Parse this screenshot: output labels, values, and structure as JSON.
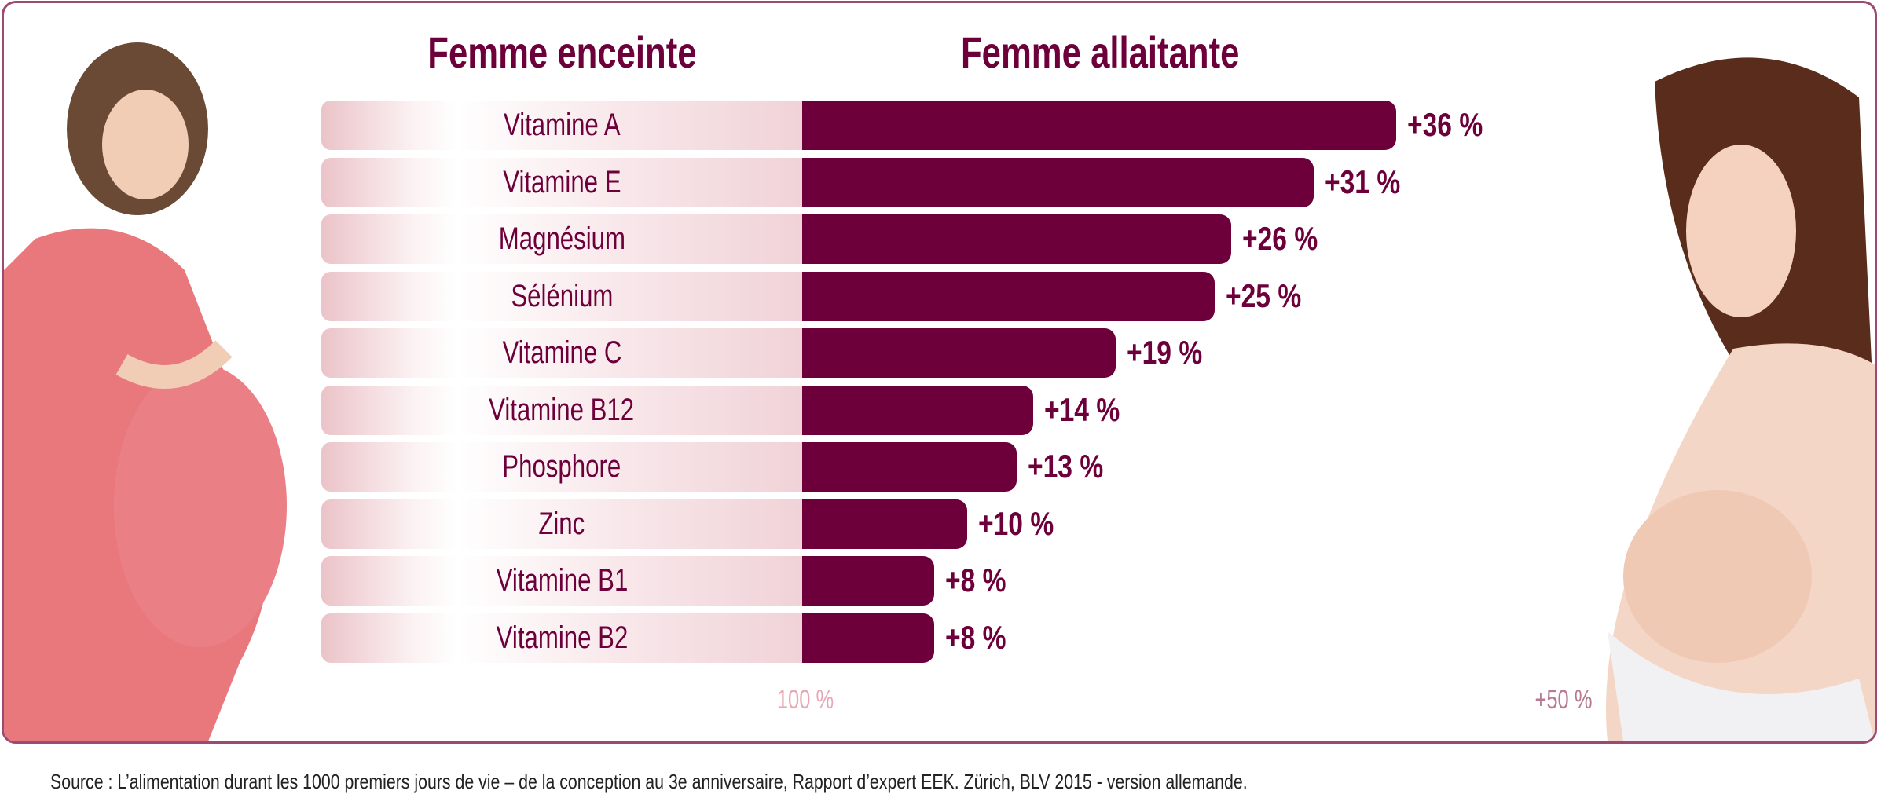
{
  "headings": {
    "left": "Femme enceinte",
    "right": "Femme allaitante"
  },
  "colors": {
    "bar": "#6d003a",
    "baseline_bar": "#ebc3c9",
    "frame": "#9c4a74"
  },
  "chart_data": {
    "type": "bar",
    "orientation": "horizontal",
    "categories": [
      "Vitamine A",
      "Vitamine E",
      "Magnésium",
      "Sélénium",
      "Vitamine C",
      "Vitamine B12",
      "Phosphore",
      "Zinc",
      "Vitamine B1",
      "Vitamine B2"
    ],
    "values": [
      36,
      31,
      26,
      25,
      19,
      14,
      13,
      10,
      8,
      8
    ],
    "value_labels": [
      "+36 %",
      "+31 %",
      "+26 %",
      "+25 %",
      "+19 %",
      "+14 %",
      "+13 %",
      "+10 %",
      "+8 %",
      "+8 %"
    ],
    "baseline_label": "100 %",
    "max_label": "+50 %",
    "xlim": [
      0,
      50
    ],
    "grid": false
  },
  "source": "Source : L’alimentation durant les 1000 premiers jours de vie – de la conception au 3e anniversaire, Rapport d’expert EEK. Zürich, BLV 2015 - version allemande.",
  "images": {
    "left": "pregnant-woman-photo",
    "right": "breastfeeding-woman-photo"
  }
}
